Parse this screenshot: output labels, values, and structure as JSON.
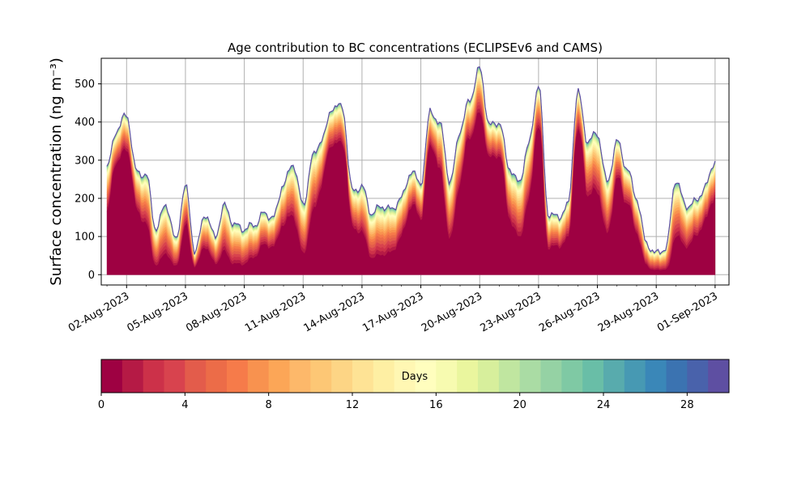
{
  "chart_data": {
    "type": "area",
    "title": "Age contribution to BC concentrations (ECLIPSEv6 and CAMS)",
    "ylabel": "Surface concentration (ng m⁻³)",
    "xlabel": "",
    "ylim": [
      -27,
      567
    ],
    "xlim": [
      "2023-07-31T17:00",
      "2023-09-01T17:00"
    ],
    "grid": true,
    "x_ticks": [
      "02-Aug-2023",
      "05-Aug-2023",
      "08-Aug-2023",
      "11-Aug-2023",
      "14-Aug-2023",
      "17-Aug-2023",
      "20-Aug-2023",
      "23-Aug-2023",
      "26-Aug-2023",
      "29-Aug-2023",
      "01-Sep-2023"
    ],
    "y_ticks": [
      0,
      100,
      200,
      300,
      400,
      500
    ],
    "x_start": "2023-08-01",
    "x_end": "2023-09-01",
    "total": {
      "x": [
        "2023-08-01",
        "2023-08-01T12:00",
        "2023-08-02",
        "2023-08-02T12:00",
        "2023-08-03",
        "2023-08-03T12:00",
        "2023-08-04",
        "2023-08-04T12:00",
        "2023-08-05",
        "2023-08-05T12:00",
        "2023-08-06",
        "2023-08-06T12:00",
        "2023-08-07",
        "2023-08-07T12:00",
        "2023-08-08",
        "2023-08-08T12:00",
        "2023-08-09",
        "2023-08-09T12:00",
        "2023-08-10",
        "2023-08-10T12:00",
        "2023-08-11",
        "2023-08-11T12:00",
        "2023-08-12",
        "2023-08-12T12:00",
        "2023-08-13",
        "2023-08-13T12:00",
        "2023-08-14",
        "2023-08-14T12:00",
        "2023-08-15",
        "2023-08-15T12:00",
        "2023-08-16",
        "2023-08-16T12:00",
        "2023-08-17",
        "2023-08-17T12:00",
        "2023-08-18",
        "2023-08-18T12:00",
        "2023-08-19",
        "2023-08-19T12:00",
        "2023-08-20",
        "2023-08-20T12:00",
        "2023-08-21",
        "2023-08-21T12:00",
        "2023-08-22",
        "2023-08-22T12:00",
        "2023-08-23",
        "2023-08-23T12:00",
        "2023-08-24",
        "2023-08-24T12:00",
        "2023-08-25",
        "2023-08-25T12:00",
        "2023-08-26",
        "2023-08-26T12:00",
        "2023-08-27",
        "2023-08-27T12:00",
        "2023-08-28",
        "2023-08-28T12:00",
        "2023-08-29",
        "2023-08-29T12:00",
        "2023-08-30",
        "2023-08-30T12:00",
        "2023-08-31",
        "2023-08-31T12:00",
        "2023-09-01"
      ],
      "y": [
        280,
        380,
        420,
        270,
        260,
        120,
        185,
        90,
        230,
        60,
        160,
        100,
        180,
        130,
        120,
        130,
        160,
        150,
        240,
        290,
        180,
        310,
        360,
        440,
        440,
        220,
        230,
        160,
        180,
        170,
        200,
        270,
        240,
        430,
        390,
        240,
        380,
        460,
        540,
        390,
        400,
        280,
        240,
        340,
        500,
        160,
        150,
        180,
        480,
        350,
        370,
        240,
        350,
        280,
        200,
        80,
        55,
        70,
        250,
        180,
        190,
        230,
        300
      ]
    },
    "age_bins_days": [
      0,
      1,
      2,
      3,
      4,
      5,
      6,
      7,
      8,
      9,
      10,
      11,
      12,
      13,
      14,
      15,
      16,
      17,
      18,
      19,
      20,
      21,
      22,
      23,
      24,
      25,
      26,
      27,
      28,
      29,
      30
    ],
    "colorbar": {
      "label": "Days",
      "ticks": [
        0,
        4,
        8,
        12,
        16,
        20,
        24,
        28
      ],
      "range": [
        0,
        30
      ],
      "colors": [
        "#9e0142",
        "#b51a45",
        "#cc3149",
        "#d8434e",
        "#e35c4b",
        "#ec6c48",
        "#f67b4a",
        "#f8924f",
        "#fca657",
        "#fdb86a",
        "#fdc775",
        "#fdd585",
        "#fee395",
        "#feefa3",
        "#fff7b3",
        "#fffebe",
        "#f7fbb0",
        "#eaf69e",
        "#d7ef9c",
        "#c0e6a0",
        "#aadca4",
        "#95d2a4",
        "#7fc9a4",
        "#69bea7",
        "#58abad",
        "#4799b3",
        "#3a87b8",
        "#3b73b1",
        "#4962ab",
        "#5e4fa2"
      ]
    }
  }
}
